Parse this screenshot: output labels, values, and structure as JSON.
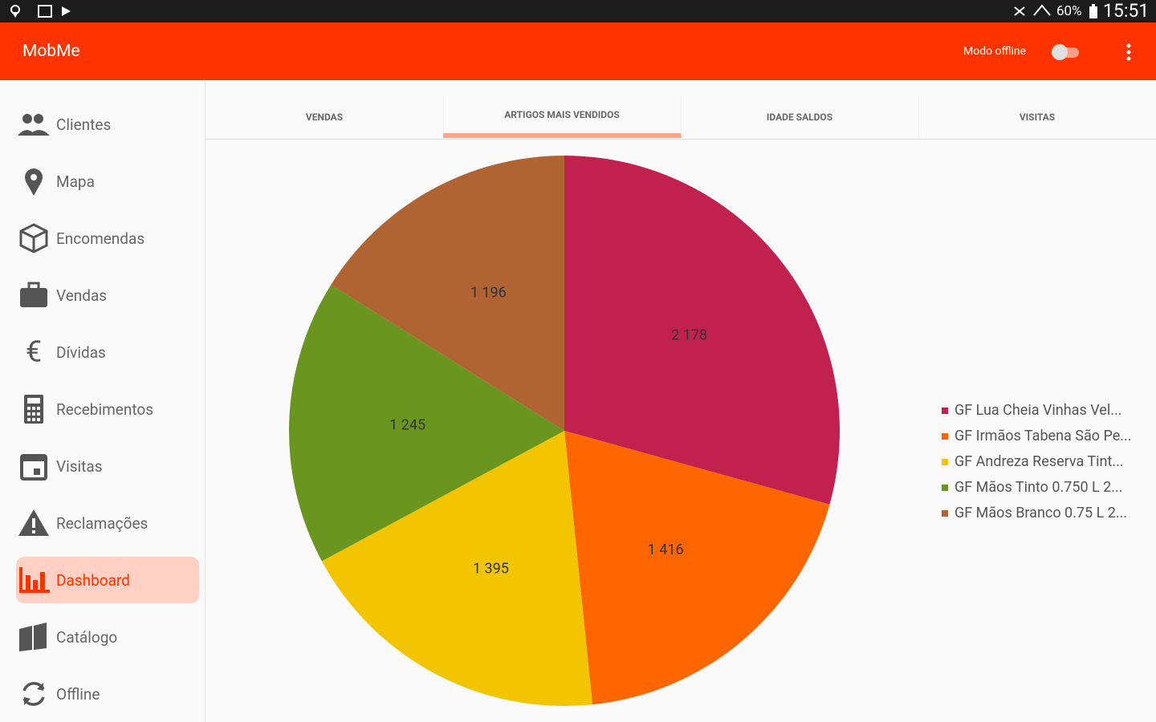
{
  "status_bar": {
    "battery": "60%",
    "time": "15:51"
  },
  "app_bar": {
    "title": "MobMe",
    "offline_label": "Modo offline"
  },
  "nav": [
    "Clientes",
    "Mapa",
    "Encomendas",
    "Vendas",
    "Dívidas",
    "Recebimentos",
    "Visitas",
    "Reclamações",
    "Dashboard",
    "Catálogo",
    "Offline"
  ],
  "tabs": [
    "VENDAS",
    "ARTIGOS MAIS VENDIDOS",
    "IDADE SALDOS",
    "VISITAS"
  ],
  "chart_data": {
    "type": "pie",
    "categories": [
      "GF Lua Cheia Vinhas Vel...",
      "GF Irmãos Tabena São Pe...",
      "GF Andreza Reserva Tint...",
      "GF Mãos Tinto 0.750 L 2...",
      "GF Mãos Branco 0.75 L 2..."
    ],
    "values": [
      2178,
      1416,
      1395,
      1245,
      1196
    ],
    "value_labels": [
      "2 178",
      "1 416",
      "1 395",
      "1 245",
      "1 196"
    ],
    "colors": [
      "#c0214f",
      "#ff6600",
      "#f2c500",
      "#6a961f",
      "#b06333"
    ],
    "legend": "right"
  }
}
